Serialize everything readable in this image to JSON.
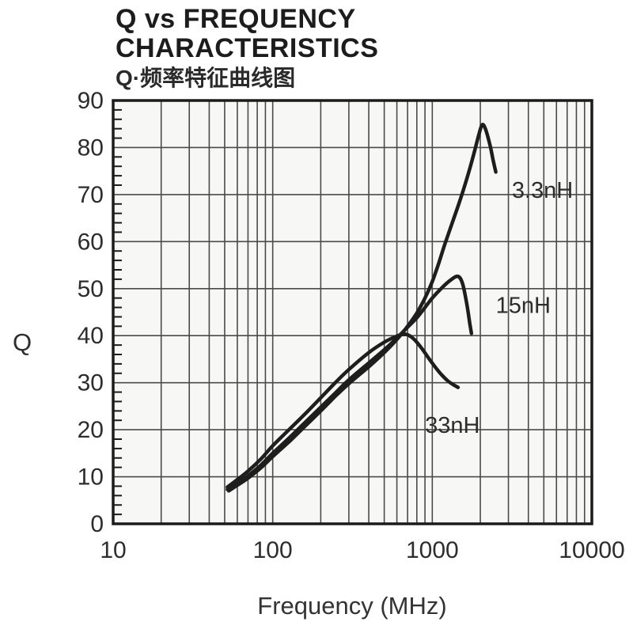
{
  "header": {
    "title_line1": "Q vs FREQUENCY",
    "title_line2": "CHARACTERISTICS",
    "title_line3": "Q·频率特征曲线图"
  },
  "axes": {
    "x_label": "Frequency (MHz)",
    "y_label": "Q"
  },
  "colors": {
    "curve": "#1e1e1e",
    "grid": "#4a4a4a",
    "frame": "#1b1b1b",
    "text": "#2d2d2d",
    "plot_bg": "#f7f7f6"
  },
  "chart_data": {
    "type": "line",
    "title": "Q vs FREQUENCY CHARACTERISTICS",
    "subtitle": "Q·频率特征曲线图",
    "xlabel": "Frequency (MHz)",
    "ylabel": "Q",
    "x_scale": "log",
    "xlim": [
      10,
      10000
    ],
    "ylim": [
      0,
      90
    ],
    "x_ticks": [
      10,
      100,
      1000,
      10000
    ],
    "y_ticks": [
      0,
      10,
      20,
      30,
      40,
      50,
      60,
      70,
      80,
      90
    ],
    "grid": "on",
    "legend": "inline-labels",
    "series": [
      {
        "name": "3.3nH",
        "label_anchor": {
          "f": 3150,
          "q": 71
        },
        "points": [
          [
            53,
            7.0
          ],
          [
            60,
            8.2
          ],
          [
            70,
            9.7
          ],
          [
            85,
            12.0
          ],
          [
            100,
            14.3
          ],
          [
            130,
            17.8
          ],
          [
            160,
            20.8
          ],
          [
            200,
            24.0
          ],
          [
            250,
            27.3
          ],
          [
            300,
            29.8
          ],
          [
            400,
            33.4
          ],
          [
            500,
            36.4
          ],
          [
            600,
            39.2
          ],
          [
            700,
            42.0
          ],
          [
            800,
            44.8
          ],
          [
            900,
            48.0
          ],
          [
            1000,
            51.5
          ],
          [
            1100,
            55.5
          ],
          [
            1200,
            59.5
          ],
          [
            1350,
            64.5
          ],
          [
            1500,
            69.0
          ],
          [
            1650,
            73.5
          ],
          [
            1800,
            78.0
          ],
          [
            1950,
            82.5
          ],
          [
            2050,
            84.8
          ],
          [
            2150,
            84.0
          ],
          [
            2300,
            80.5
          ],
          [
            2400,
            77.5
          ],
          [
            2500,
            74.8
          ]
        ]
      },
      {
        "name": "15nH",
        "label_anchor": {
          "f": 2500,
          "q": 46.5
        },
        "points": [
          [
            52,
            7.3
          ],
          [
            60,
            8.6
          ],
          [
            70,
            10.2
          ],
          [
            85,
            12.6
          ],
          [
            100,
            15.0
          ],
          [
            130,
            18.6
          ],
          [
            160,
            21.6
          ],
          [
            200,
            24.8
          ],
          [
            250,
            28.0
          ],
          [
            300,
            30.6
          ],
          [
            400,
            34.2
          ],
          [
            500,
            37.0
          ],
          [
            600,
            39.5
          ],
          [
            700,
            41.8
          ],
          [
            800,
            43.8
          ],
          [
            900,
            46.0
          ],
          [
            1000,
            48.0
          ],
          [
            1150,
            50.2
          ],
          [
            1300,
            51.8
          ],
          [
            1450,
            52.6
          ],
          [
            1550,
            51.0
          ],
          [
            1650,
            46.5
          ],
          [
            1720,
            42.5
          ],
          [
            1760,
            40.5
          ]
        ]
      },
      {
        "name": "33nH",
        "label_anchor": {
          "f": 900,
          "q": 21
        },
        "points": [
          [
            52,
            7.8
          ],
          [
            60,
            9.4
          ],
          [
            70,
            11.2
          ],
          [
            85,
            13.9
          ],
          [
            100,
            16.6
          ],
          [
            130,
            20.4
          ],
          [
            160,
            23.4
          ],
          [
            200,
            26.8
          ],
          [
            250,
            30.2
          ],
          [
            300,
            32.8
          ],
          [
            400,
            36.4
          ],
          [
            500,
            38.6
          ],
          [
            600,
            39.9
          ],
          [
            680,
            40.3
          ],
          [
            760,
            39.4
          ],
          [
            850,
            37.5
          ],
          [
            950,
            35.2
          ],
          [
            1050,
            33.2
          ],
          [
            1150,
            31.6
          ],
          [
            1250,
            30.4
          ],
          [
            1350,
            29.6
          ],
          [
            1450,
            29.0
          ]
        ]
      }
    ]
  }
}
